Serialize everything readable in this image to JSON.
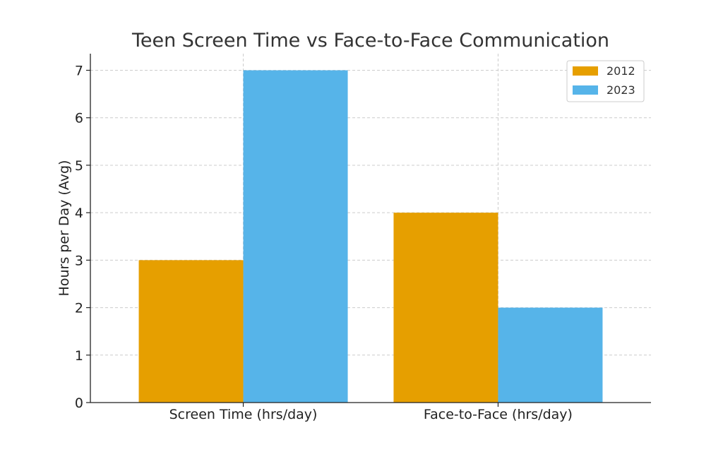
{
  "chart_data": {
    "type": "bar",
    "title": "Teen Screen Time vs Face-to-Face Communication",
    "xlabel": "",
    "ylabel": "Hours per Day (Avg)",
    "categories": [
      "Screen Time (hrs/day)",
      "Face-to-Face (hrs/day)"
    ],
    "series": [
      {
        "name": "2012",
        "values": [
          3,
          4
        ],
        "color": "#E69F00"
      },
      {
        "name": "2023",
        "values": [
          7,
          2
        ],
        "color": "#56B4E9"
      }
    ],
    "ylim": [
      0,
      7.35
    ],
    "yticks": [
      0,
      1,
      2,
      3,
      4,
      5,
      6,
      7
    ],
    "grid": true,
    "legend_position": "top-right"
  }
}
